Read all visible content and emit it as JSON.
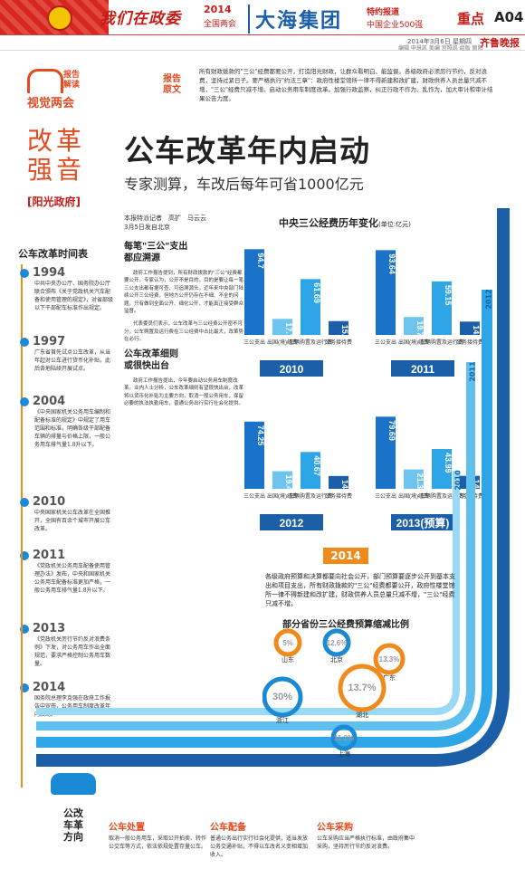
{
  "header": {
    "slogan": "我们在政委",
    "event_year": "2014",
    "event_name": "全国两会",
    "group_name": "大海集团",
    "special_label": "特约报道",
    "special_sub": "中国企业500强",
    "section": "重点",
    "page": "A04",
    "date_line": "2014年3月6日 星期四",
    "credits": "编辑 申慧凯 美编 宫照凯 组版 丽阳",
    "paper_name": "齐鲁晚报"
  },
  "badge": {
    "line1": "报告",
    "line2": "解读",
    "visual": "视觉两会"
  },
  "report_original": {
    "label": "报告原文",
    "text": "所有财政拨款的\"三公\"经费都要公开，打造阳光财政，让群众看明白、能监督。各级政府必须厉行节约，反对浪费，坚持过紧日子。要严格执行\"约法三章\"：政府性楼堂馆所一律不得新建和改扩建，财政供养人员总量只减不增，\"三公\"经费只减不增。启动公务用车制度改革。加强行政监察，纠正行政不作为、乱作为，加大审计和审计结果公告力度。"
  },
  "column": {
    "title_line1": "改革",
    "title_line2": "强音",
    "tag": "[阳光政府]"
  },
  "main": {
    "title": "公车改革年内启动",
    "subtitle": "专家测算，车改后每年可省1000亿元",
    "byline_1": "本报特派记者　高扩　马云云",
    "byline_2": "3月5日发自北京"
  },
  "timeline": {
    "title": "公车改革时间表",
    "entries": [
      {
        "year": "1994",
        "desc": "中共中央办公厅、国务院办公厅联合颁布《关于党政机关汽车配备和使用管理的规定》，对省部级以下干部配车标准作出规定。"
      },
      {
        "year": "1997",
        "desc": "广东省首先试点公车改革，从当年起对公车进行货币化补贴，此后各地陆续开展试点。"
      },
      {
        "year": "2004",
        "desc": "《中央国家机关公务用车编制和配备标准的规定》中规定了用车范围和标准，明确各级干部配备车辆的排量与价格上限，一般公务用车排气量1.8升以下。"
      },
      {
        "year": "2010",
        "desc": "中央国家机关公车改革在全国推开，全国有百余个城市开展公车改革。"
      },
      {
        "year": "2011",
        "desc": "《党政机关公务用车配备使用管理办法》发布，中央和国家机关公务用车配备标准更加严格，一般公务用车排气量1.8升以下。"
      },
      {
        "year": "2013",
        "desc": "《党政机关厉行节约反对浪费条例》下发，对公务用车作出全面规范，要求严格控制公务用车数量。"
      },
      {
        "year": "2014",
        "desc": "国务院总理李克强在政府工作报告中宣布，公务用车制度改革年内启动。"
      }
    ]
  },
  "article": {
    "head1_a": "每笔\"三公\"支出",
    "head1_b": "都应溯源",
    "body1": "政府工作报告提到，所有财政拨款的\"三公\"经费都要公开。专家认为，公开不是目的，目的是要让每一笔三公支出都有据可查、可追溯源头。近年来中央部门陆续公开三公经费，但地方公开仍存在不细、不全的问题。只有做到全面公开、细化公开，才能真正接受群众监督。",
    "body2": "代表委员们表示，公车改革与三公经费公开密不可分，公车购置及运行费在三公经费中占比最大，改革势在必行。",
    "head2_a": "公车改革细则",
    "head2_b": "或很快出台",
    "body3": "政府工作报告提出，今年要启动公务用车制度改革。业内人士分析，公车改革细则有望很快出台，改革将以货币化补贴为主要方向，取消一般公务用车，保留必要的执法执勤用车，普通公务出行实行社会化提供。"
  },
  "chart_data": {
    "type": "bar",
    "title": "中央三公经费历年变化",
    "unit": "(单位:亿元)",
    "categories": [
      "三公支出",
      "出国(境)经费",
      "车辆购置及运行费",
      "公务接待费"
    ],
    "series": [
      {
        "name": "2010",
        "values": [
          94.7,
          17.73,
          61.69,
          15.28
        ]
      },
      {
        "name": "2011",
        "values": [
          93.64,
          19.77,
          59.15,
          14.72
        ]
      },
      {
        "name": "2012",
        "values": [
          74.25,
          19.45,
          40.67,
          14.13
        ]
      },
      {
        "name": "2013(预算)",
        "values": [
          79.69,
          21.36,
          43.99,
          14.34
        ]
      }
    ],
    "ylim": [
      0,
      100
    ]
  },
  "right_years": [
    "2013",
    "2012",
    "2011",
    "2010"
  ],
  "explain": {
    "year_badge": "2014",
    "text": "各级政府预算和决算都要向社会公开，部门预算要逐步公开到基本支出和项目支出，所有财政拨款的\"三公\"经费都要公开，政府性楼堂馆所一律不得新建和改扩建，财政供养人员总量只减不增，\"三公\"经费只减不增。"
  },
  "provinces": {
    "title": "部分省份三公经费预算缩减比例",
    "items": [
      {
        "name": "山东",
        "pct": "5%"
      },
      {
        "name": "北京",
        "pct": "12.6%"
      },
      {
        "name": "广东",
        "pct": "13.3%"
      },
      {
        "name": "浙江",
        "pct": "30%"
      },
      {
        "name": "湖北",
        "pct": "13.7%"
      },
      {
        "name": "上海",
        "pct": "11.2%"
      }
    ]
  },
  "direction": {
    "label_a": "公改",
    "label_b": "车革",
    "label_c": "方向",
    "items": [
      {
        "title": "公车处置",
        "body": "取消一般公务用车，采取公开拍卖、转作公交车等方式，依法依规处置存量公车。"
      },
      {
        "title": "公车配备",
        "body": "普通公务出行实行社会化提供，适当发放公务交通补贴，不得以车改名义变相增加收入。"
      },
      {
        "title": "公车采购",
        "body": "公车采购应当严格执行标准，由政府集中采购，坚持厉行节约反对浪费。"
      }
    ]
  }
}
